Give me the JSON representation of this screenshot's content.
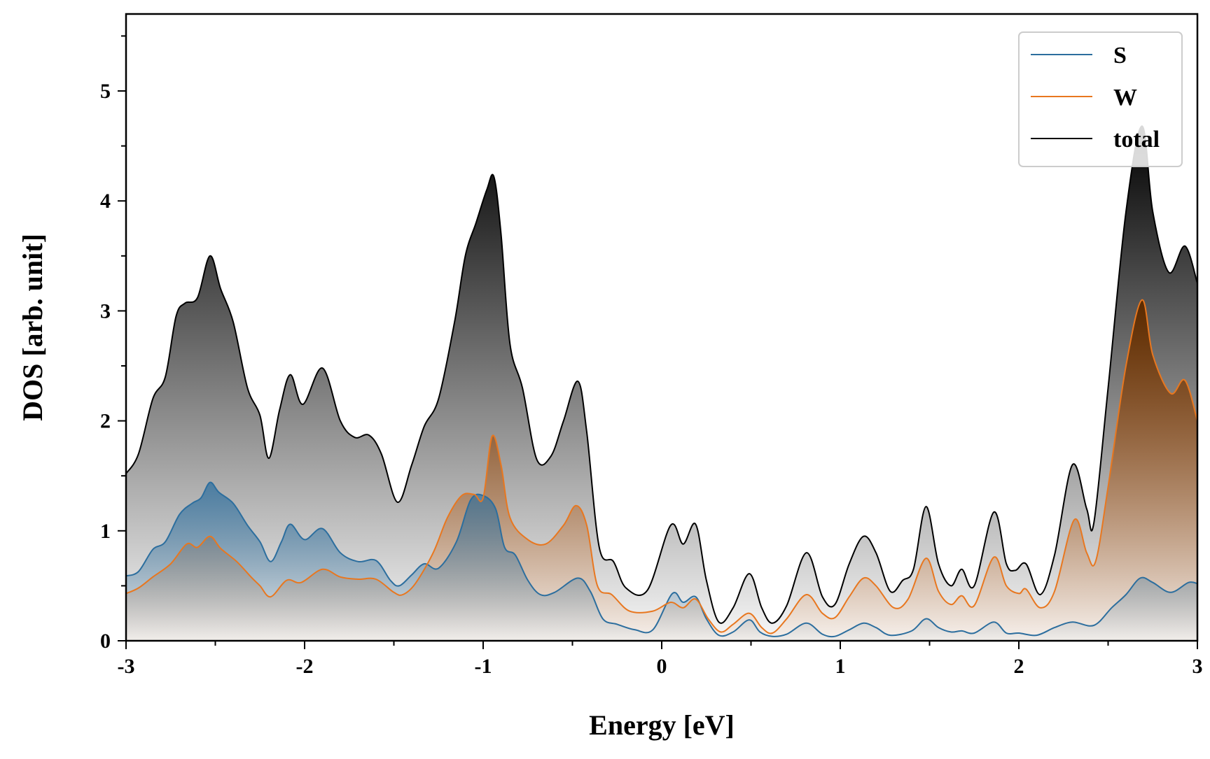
{
  "chart_data": {
    "type": "area",
    "xlabel": "Energy [eV]",
    "ylabel": "DOS [arb. unit]",
    "xlim": [
      -3,
      3
    ],
    "ylim": [
      0,
      5.7
    ],
    "xticks": [
      "-3",
      "-2",
      "-1",
      "0",
      "1",
      "2",
      "3"
    ],
    "yticks": [
      "0",
      "1",
      "2",
      "3",
      "4",
      "5"
    ],
    "grid": false,
    "legend_position": "top-right",
    "series": [
      {
        "name": "S",
        "color": "#2c6e9e",
        "points": [
          [
            -3.0,
            0.59
          ],
          [
            -2.93,
            0.63
          ],
          [
            -2.85,
            0.83
          ],
          [
            -2.78,
            0.9
          ],
          [
            -2.7,
            1.15
          ],
          [
            -2.63,
            1.25
          ],
          [
            -2.58,
            1.3
          ],
          [
            -2.53,
            1.44
          ],
          [
            -2.48,
            1.35
          ],
          [
            -2.4,
            1.25
          ],
          [
            -2.32,
            1.05
          ],
          [
            -2.25,
            0.9
          ],
          [
            -2.19,
            0.72
          ],
          [
            -2.13,
            0.9
          ],
          [
            -2.08,
            1.06
          ],
          [
            -2.0,
            0.92
          ],
          [
            -1.9,
            1.02
          ],
          [
            -1.8,
            0.8
          ],
          [
            -1.7,
            0.72
          ],
          [
            -1.6,
            0.73
          ],
          [
            -1.52,
            0.55
          ],
          [
            -1.47,
            0.5
          ],
          [
            -1.4,
            0.6
          ],
          [
            -1.33,
            0.7
          ],
          [
            -1.25,
            0.66
          ],
          [
            -1.15,
            0.9
          ],
          [
            -1.07,
            1.28
          ],
          [
            -1.0,
            1.32
          ],
          [
            -0.93,
            1.2
          ],
          [
            -0.88,
            0.85
          ],
          [
            -0.82,
            0.78
          ],
          [
            -0.75,
            0.55
          ],
          [
            -0.68,
            0.42
          ],
          [
            -0.6,
            0.44
          ],
          [
            -0.47,
            0.57
          ],
          [
            -0.4,
            0.45
          ],
          [
            -0.33,
            0.2
          ],
          [
            -0.25,
            0.15
          ],
          [
            -0.15,
            0.1
          ],
          [
            -0.05,
            0.1
          ],
          [
            0.06,
            0.43
          ],
          [
            0.12,
            0.35
          ],
          [
            0.19,
            0.4
          ],
          [
            0.25,
            0.2
          ],
          [
            0.32,
            0.05
          ],
          [
            0.4,
            0.08
          ],
          [
            0.49,
            0.19
          ],
          [
            0.55,
            0.08
          ],
          [
            0.62,
            0.04
          ],
          [
            0.7,
            0.06
          ],
          [
            0.81,
            0.16
          ],
          [
            0.9,
            0.06
          ],
          [
            0.97,
            0.04
          ],
          [
            1.05,
            0.1
          ],
          [
            1.13,
            0.16
          ],
          [
            1.2,
            0.12
          ],
          [
            1.28,
            0.05
          ],
          [
            1.4,
            0.09
          ],
          [
            1.48,
            0.2
          ],
          [
            1.55,
            0.12
          ],
          [
            1.62,
            0.08
          ],
          [
            1.68,
            0.09
          ],
          [
            1.75,
            0.07
          ],
          [
            1.86,
            0.17
          ],
          [
            1.93,
            0.07
          ],
          [
            2.0,
            0.07
          ],
          [
            2.1,
            0.05
          ],
          [
            2.2,
            0.12
          ],
          [
            2.3,
            0.17
          ],
          [
            2.42,
            0.14
          ],
          [
            2.52,
            0.3
          ],
          [
            2.6,
            0.42
          ],
          [
            2.68,
            0.57
          ],
          [
            2.75,
            0.53
          ],
          [
            2.85,
            0.44
          ],
          [
            2.95,
            0.53
          ],
          [
            3.0,
            0.52
          ]
        ]
      },
      {
        "name": "W",
        "color": "#e8771f",
        "points": [
          [
            -3.0,
            0.43
          ],
          [
            -2.93,
            0.48
          ],
          [
            -2.85,
            0.58
          ],
          [
            -2.75,
            0.7
          ],
          [
            -2.66,
            0.88
          ],
          [
            -2.6,
            0.85
          ],
          [
            -2.53,
            0.95
          ],
          [
            -2.47,
            0.84
          ],
          [
            -2.38,
            0.72
          ],
          [
            -2.3,
            0.58
          ],
          [
            -2.25,
            0.5
          ],
          [
            -2.19,
            0.4
          ],
          [
            -2.1,
            0.55
          ],
          [
            -2.02,
            0.53
          ],
          [
            -1.9,
            0.65
          ],
          [
            -1.8,
            0.58
          ],
          [
            -1.7,
            0.56
          ],
          [
            -1.6,
            0.56
          ],
          [
            -1.5,
            0.44
          ],
          [
            -1.45,
            0.42
          ],
          [
            -1.38,
            0.52
          ],
          [
            -1.28,
            0.8
          ],
          [
            -1.2,
            1.12
          ],
          [
            -1.12,
            1.32
          ],
          [
            -1.05,
            1.33
          ],
          [
            -1.0,
            1.3
          ],
          [
            -0.95,
            1.86
          ],
          [
            -0.9,
            1.6
          ],
          [
            -0.85,
            1.12
          ],
          [
            -0.75,
            0.92
          ],
          [
            -0.65,
            0.88
          ],
          [
            -0.55,
            1.05
          ],
          [
            -0.48,
            1.23
          ],
          [
            -0.42,
            1.05
          ],
          [
            -0.36,
            0.5
          ],
          [
            -0.28,
            0.42
          ],
          [
            -0.18,
            0.27
          ],
          [
            -0.05,
            0.27
          ],
          [
            0.05,
            0.35
          ],
          [
            0.12,
            0.3
          ],
          [
            0.19,
            0.38
          ],
          [
            0.26,
            0.2
          ],
          [
            0.33,
            0.08
          ],
          [
            0.4,
            0.15
          ],
          [
            0.49,
            0.25
          ],
          [
            0.56,
            0.12
          ],
          [
            0.62,
            0.07
          ],
          [
            0.7,
            0.2
          ],
          [
            0.81,
            0.42
          ],
          [
            0.9,
            0.25
          ],
          [
            0.97,
            0.21
          ],
          [
            1.05,
            0.4
          ],
          [
            1.13,
            0.57
          ],
          [
            1.2,
            0.5
          ],
          [
            1.3,
            0.3
          ],
          [
            1.38,
            0.38
          ],
          [
            1.48,
            0.75
          ],
          [
            1.55,
            0.45
          ],
          [
            1.62,
            0.33
          ],
          [
            1.68,
            0.41
          ],
          [
            1.75,
            0.32
          ],
          [
            1.86,
            0.76
          ],
          [
            1.93,
            0.5
          ],
          [
            2.0,
            0.43
          ],
          [
            2.04,
            0.47
          ],
          [
            2.12,
            0.3
          ],
          [
            2.2,
            0.45
          ],
          [
            2.31,
            1.1
          ],
          [
            2.38,
            0.8
          ],
          [
            2.43,
            0.72
          ],
          [
            2.5,
            1.4
          ],
          [
            2.6,
            2.5
          ],
          [
            2.69,
            3.1
          ],
          [
            2.75,
            2.6
          ],
          [
            2.85,
            2.25
          ],
          [
            2.93,
            2.37
          ],
          [
            3.0,
            2.0
          ]
        ]
      },
      {
        "name": "total",
        "color": "#000000",
        "points": [
          [
            -3.0,
            1.52
          ],
          [
            -2.93,
            1.7
          ],
          [
            -2.85,
            2.2
          ],
          [
            -2.78,
            2.4
          ],
          [
            -2.72,
            2.95
          ],
          [
            -2.67,
            3.07
          ],
          [
            -2.6,
            3.12
          ],
          [
            -2.53,
            3.5
          ],
          [
            -2.47,
            3.2
          ],
          [
            -2.4,
            2.9
          ],
          [
            -2.32,
            2.3
          ],
          [
            -2.25,
            2.05
          ],
          [
            -2.2,
            1.66
          ],
          [
            -2.14,
            2.1
          ],
          [
            -2.08,
            2.42
          ],
          [
            -2.01,
            2.15
          ],
          [
            -1.9,
            2.48
          ],
          [
            -1.8,
            2.0
          ],
          [
            -1.72,
            1.85
          ],
          [
            -1.64,
            1.87
          ],
          [
            -1.57,
            1.7
          ],
          [
            -1.48,
            1.26
          ],
          [
            -1.4,
            1.6
          ],
          [
            -1.33,
            1.95
          ],
          [
            -1.25,
            2.2
          ],
          [
            -1.16,
            2.9
          ],
          [
            -1.1,
            3.5
          ],
          [
            -1.04,
            3.8
          ],
          [
            -0.98,
            4.1
          ],
          [
            -0.94,
            4.22
          ],
          [
            -0.9,
            3.7
          ],
          [
            -0.85,
            2.7
          ],
          [
            -0.78,
            2.3
          ],
          [
            -0.7,
            1.65
          ],
          [
            -0.62,
            1.68
          ],
          [
            -0.55,
            2.0
          ],
          [
            -0.47,
            2.36
          ],
          [
            -0.42,
            1.9
          ],
          [
            -0.35,
            0.85
          ],
          [
            -0.27,
            0.72
          ],
          [
            -0.2,
            0.48
          ],
          [
            -0.08,
            0.46
          ],
          [
            0.05,
            1.05
          ],
          [
            0.12,
            0.88
          ],
          [
            0.19,
            1.06
          ],
          [
            0.25,
            0.55
          ],
          [
            0.32,
            0.17
          ],
          [
            0.4,
            0.3
          ],
          [
            0.49,
            0.61
          ],
          [
            0.56,
            0.3
          ],
          [
            0.62,
            0.16
          ],
          [
            0.7,
            0.32
          ],
          [
            0.81,
            0.8
          ],
          [
            0.9,
            0.4
          ],
          [
            0.97,
            0.33
          ],
          [
            1.05,
            0.7
          ],
          [
            1.13,
            0.95
          ],
          [
            1.2,
            0.8
          ],
          [
            1.28,
            0.45
          ],
          [
            1.35,
            0.55
          ],
          [
            1.41,
            0.65
          ],
          [
            1.48,
            1.22
          ],
          [
            1.55,
            0.7
          ],
          [
            1.62,
            0.5
          ],
          [
            1.68,
            0.65
          ],
          [
            1.75,
            0.5
          ],
          [
            1.86,
            1.17
          ],
          [
            1.93,
            0.7
          ],
          [
            1.98,
            0.64
          ],
          [
            2.04,
            0.7
          ],
          [
            2.12,
            0.42
          ],
          [
            2.2,
            0.78
          ],
          [
            2.3,
            1.6
          ],
          [
            2.38,
            1.2
          ],
          [
            2.42,
            1.07
          ],
          [
            2.5,
            2.3
          ],
          [
            2.6,
            3.9
          ],
          [
            2.69,
            4.68
          ],
          [
            2.75,
            3.9
          ],
          [
            2.84,
            3.35
          ],
          [
            2.93,
            3.59
          ],
          [
            3.0,
            3.25
          ]
        ]
      }
    ]
  }
}
